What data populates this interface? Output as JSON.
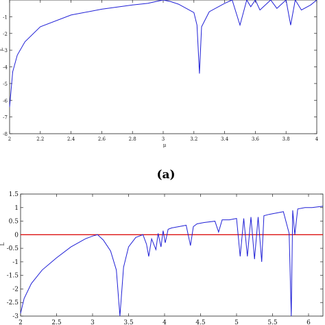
{
  "chart_data": [
    {
      "type": "line",
      "panel_label": "(a)",
      "xlabel": "μ",
      "ylabel": "L",
      "xlim": [
        2,
        4
      ],
      "ylim": [
        -8,
        0
      ],
      "xticks": [
        "2",
        "2.2",
        "2.4",
        "2.6",
        "2.8",
        "3",
        "3.2",
        "3.4",
        "3.6",
        "3.8",
        "4"
      ],
      "yticks": [
        "-1",
        "-2",
        "-3",
        "-4",
        "-5",
        "-6",
        "-7",
        "-8"
      ],
      "grid": false,
      "series": [
        {
          "color": "#1f1fd6",
          "x": [
            2.0,
            2.02,
            2.05,
            2.1,
            2.2,
            2.4,
            2.6,
            2.8,
            2.9,
            2.95,
            3.0,
            3.05,
            3.1,
            3.2,
            3.22,
            3.236,
            3.25,
            3.3,
            3.4,
            3.449,
            3.5,
            3.544,
            3.57,
            3.6,
            3.63,
            3.7,
            3.74,
            3.8,
            3.83,
            3.86,
            3.9,
            3.96,
            4.0
          ],
          "y": [
            -6.4,
            -4.3,
            -3.3,
            -2.5,
            -1.6,
            -0.9,
            -0.55,
            -0.3,
            -0.2,
            -0.1,
            0.0,
            -0.1,
            -0.25,
            -0.75,
            -1.5,
            -4.4,
            -1.6,
            -0.7,
            -0.2,
            0.0,
            -1.5,
            0.0,
            -0.4,
            0.1,
            -0.6,
            0.15,
            -0.5,
            0.2,
            -1.5,
            0.1,
            -0.6,
            -0.3,
            0.5
          ]
        }
      ]
    },
    {
      "type": "line",
      "ylabel": "L",
      "xlim": [
        2,
        6.2
      ],
      "ylim": [
        -3,
        1.5
      ],
      "xticks": [
        "2",
        "2.5",
        "3",
        "3.5",
        "4",
        "4.5",
        "5",
        "5.5",
        "6"
      ],
      "yticks": [
        "1.5",
        "1",
        "0.5",
        "0",
        "-0.5",
        "-1",
        "-1.5",
        "-2",
        "-2.5",
        "-3"
      ],
      "grid": false,
      "reference_line": {
        "y": 0,
        "color": "#dd1111"
      },
      "series": [
        {
          "color": "#1f1fd6",
          "x": [
            2.0,
            2.05,
            2.15,
            2.3,
            2.5,
            2.7,
            2.9,
            3.0,
            3.07,
            3.15,
            3.25,
            3.33,
            3.38,
            3.43,
            3.5,
            3.6,
            3.7,
            3.75,
            3.78,
            3.82,
            3.88,
            3.91,
            3.95,
            3.98,
            4.01,
            4.05,
            4.1,
            4.2,
            4.3,
            4.36,
            4.4,
            4.45,
            4.55,
            4.7,
            4.75,
            4.8,
            4.9,
            5.0,
            5.05,
            5.1,
            5.15,
            5.2,
            5.25,
            5.3,
            5.35,
            5.38,
            5.45,
            5.55,
            5.65,
            5.73,
            5.76,
            5.78,
            5.81,
            5.85,
            5.95,
            6.05,
            6.2
          ],
          "y": [
            -2.9,
            -2.35,
            -1.8,
            -1.3,
            -0.85,
            -0.45,
            -0.15,
            -0.05,
            0.0,
            -0.2,
            -0.6,
            -1.3,
            -3.0,
            -1.2,
            -0.45,
            -0.1,
            0.0,
            -0.35,
            -0.8,
            -0.15,
            -0.55,
            0.05,
            -0.45,
            0.15,
            -0.3,
            0.2,
            0.25,
            0.3,
            0.35,
            -0.4,
            0.3,
            0.4,
            0.45,
            0.5,
            0.1,
            0.55,
            0.55,
            0.6,
            -0.8,
            0.6,
            -0.8,
            0.65,
            -0.9,
            0.65,
            -1.0,
            0.7,
            0.75,
            0.8,
            0.85,
            0.05,
            -3.0,
            0.9,
            0.0,
            0.95,
            1.0,
            1.0,
            1.05
          ]
        }
      ]
    }
  ]
}
